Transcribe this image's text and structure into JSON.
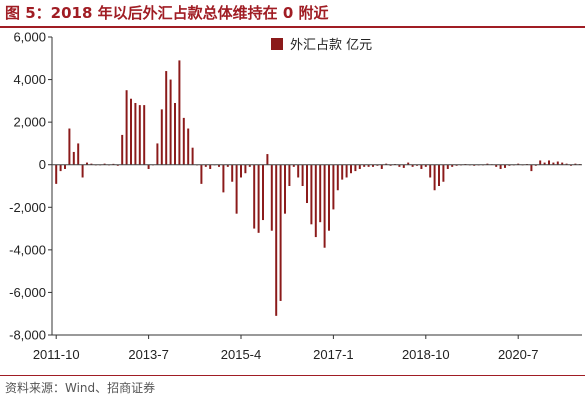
{
  "title": "图 5：2018 年以后外汇占款总体维持在 0 附近",
  "source": "资料来源：Wind、招商证券",
  "colors": {
    "accent": "#a01d24",
    "bar": "#8b1a1a"
  },
  "chart_data": {
    "type": "bar",
    "series": [
      {
        "name": "外汇占款  亿元",
        "color": "#8b1a1a",
        "points": [
          {
            "x": "2011-10",
            "y": -900
          },
          {
            "x": "2011-11",
            "y": -300
          },
          {
            "x": "2011-12",
            "y": -200
          },
          {
            "x": "2012-1",
            "y": 1700
          },
          {
            "x": "2012-2",
            "y": 600
          },
          {
            "x": "2012-3",
            "y": 1000
          },
          {
            "x": "2012-4",
            "y": -600
          },
          {
            "x": "2012-5",
            "y": 100
          },
          {
            "x": "2012-6",
            "y": 50
          },
          {
            "x": "2012-7",
            "y": -30
          },
          {
            "x": "2012-8",
            "y": -20
          },
          {
            "x": "2012-9",
            "y": 50
          },
          {
            "x": "2012-10",
            "y": -10
          },
          {
            "x": "2012-11",
            "y": 40
          },
          {
            "x": "2012-12",
            "y": -50
          },
          {
            "x": "2013-1",
            "y": 1400
          },
          {
            "x": "2013-2",
            "y": 3500
          },
          {
            "x": "2013-3",
            "y": 3100
          },
          {
            "x": "2013-4",
            "y": 2900
          },
          {
            "x": "2013-5",
            "y": 2800
          },
          {
            "x": "2013-6",
            "y": 2800
          },
          {
            "x": "2013-7",
            "y": -200
          },
          {
            "x": "2013-8",
            "y": 0
          },
          {
            "x": "2013-9",
            "y": 1000
          },
          {
            "x": "2013-10",
            "y": 2600
          },
          {
            "x": "2013-11",
            "y": 4400
          },
          {
            "x": "2013-12",
            "y": 4000
          },
          {
            "x": "2014-1",
            "y": 2900
          },
          {
            "x": "2014-2",
            "y": 4900
          },
          {
            "x": "2014-3",
            "y": 2200
          },
          {
            "x": "2014-4",
            "y": 1700
          },
          {
            "x": "2014-5",
            "y": 800
          },
          {
            "x": "2014-6",
            "y": 0
          },
          {
            "x": "2014-7",
            "y": -900
          },
          {
            "x": "2014-8",
            "y": -100
          },
          {
            "x": "2014-9",
            "y": -200
          },
          {
            "x": "2014-10",
            "y": 0
          },
          {
            "x": "2014-11",
            "y": -100
          },
          {
            "x": "2014-12",
            "y": -1300
          },
          {
            "x": "2015-1",
            "y": -100
          },
          {
            "x": "2015-2",
            "y": -800
          },
          {
            "x": "2015-3",
            "y": -2300
          },
          {
            "x": "2015-4",
            "y": -600
          },
          {
            "x": "2015-5",
            "y": -400
          },
          {
            "x": "2015-6",
            "y": -100
          },
          {
            "x": "2015-7",
            "y": -3000
          },
          {
            "x": "2015-8",
            "y": -3200
          },
          {
            "x": "2015-9",
            "y": -2600
          },
          {
            "x": "2015-10",
            "y": 500
          },
          {
            "x": "2015-11",
            "y": -3100
          },
          {
            "x": "2015-12",
            "y": -7100
          },
          {
            "x": "2016-1",
            "y": -6400
          },
          {
            "x": "2016-2",
            "y": -2300
          },
          {
            "x": "2016-3",
            "y": -1000
          },
          {
            "x": "2016-4",
            "y": -100
          },
          {
            "x": "2016-5",
            "y": -600
          },
          {
            "x": "2016-6",
            "y": -1000
          },
          {
            "x": "2016-7",
            "y": -1800
          },
          {
            "x": "2016-8",
            "y": -2800
          },
          {
            "x": "2016-9",
            "y": -3400
          },
          {
            "x": "2016-10",
            "y": -2700
          },
          {
            "x": "2016-11",
            "y": -3900
          },
          {
            "x": "2016-12",
            "y": -3100
          },
          {
            "x": "2017-1",
            "y": -2100
          },
          {
            "x": "2017-2",
            "y": -1200
          },
          {
            "x": "2017-3",
            "y": -700
          },
          {
            "x": "2017-4",
            "y": -600
          },
          {
            "x": "2017-5",
            "y": -400
          },
          {
            "x": "2017-6",
            "y": -300
          },
          {
            "x": "2017-7",
            "y": -200
          },
          {
            "x": "2017-8",
            "y": -100
          },
          {
            "x": "2017-9",
            "y": -100
          },
          {
            "x": "2017-10",
            "y": -100
          },
          {
            "x": "2017-11",
            "y": -50
          },
          {
            "x": "2017-12",
            "y": -200
          },
          {
            "x": "2018-1",
            "y": 50
          },
          {
            "x": "2018-2",
            "y": -50
          },
          {
            "x": "2018-3",
            "y": 30
          },
          {
            "x": "2018-4",
            "y": -100
          },
          {
            "x": "2018-5",
            "y": -150
          },
          {
            "x": "2018-6",
            "y": 100
          },
          {
            "x": "2018-7",
            "y": -100
          },
          {
            "x": "2018-8",
            "y": -50
          },
          {
            "x": "2018-9",
            "y": -200
          },
          {
            "x": "2018-10",
            "y": -100
          },
          {
            "x": "2018-11",
            "y": -600
          },
          {
            "x": "2018-12",
            "y": -1200
          },
          {
            "x": "2019-1",
            "y": -1000
          },
          {
            "x": "2019-2",
            "y": -800
          },
          {
            "x": "2019-3",
            "y": -200
          },
          {
            "x": "2019-4",
            "y": -100
          },
          {
            "x": "2019-5",
            "y": -50
          },
          {
            "x": "2019-6",
            "y": -30
          },
          {
            "x": "2019-7",
            "y": 30
          },
          {
            "x": "2019-8",
            "y": -20
          },
          {
            "x": "2019-9",
            "y": -50
          },
          {
            "x": "2019-10",
            "y": -30
          },
          {
            "x": "2019-11",
            "y": -20
          },
          {
            "x": "2019-12",
            "y": 50
          },
          {
            "x": "2020-1",
            "y": 20
          },
          {
            "x": "2020-2",
            "y": -100
          },
          {
            "x": "2020-3",
            "y": -200
          },
          {
            "x": "2020-4",
            "y": -150
          },
          {
            "x": "2020-5",
            "y": -50
          },
          {
            "x": "2020-6",
            "y": -30
          },
          {
            "x": "2020-7",
            "y": 50
          },
          {
            "x": "2020-8",
            "y": -20
          },
          {
            "x": "2020-9",
            "y": 30
          },
          {
            "x": "2020-10",
            "y": -300
          },
          {
            "x": "2020-11",
            "y": -50
          },
          {
            "x": "2020-12",
            "y": 200
          },
          {
            "x": "2021-1",
            "y": 100
          },
          {
            "x": "2021-2",
            "y": 200
          },
          {
            "x": "2021-3",
            "y": 100
          },
          {
            "x": "2021-4",
            "y": 150
          },
          {
            "x": "2021-5",
            "y": 100
          },
          {
            "x": "2021-6",
            "y": 50
          },
          {
            "x": "2021-7",
            "y": -50
          },
          {
            "x": "2021-8",
            "y": 50
          },
          {
            "x": "2021-9",
            "y": 30
          }
        ]
      }
    ],
    "x_tick_labels": [
      "2011-10",
      "2013-7",
      "2015-4",
      "2017-1",
      "2018-10",
      "2020-7"
    ],
    "y_ticks": [
      6000,
      4000,
      2000,
      0,
      -2000,
      -4000,
      -6000,
      -8000
    ],
    "y_tick_labels": [
      "6,000",
      "4,000",
      "2,000",
      "0",
      "-2,000",
      "-4,000",
      "-6,000",
      "-8,000"
    ],
    "ylim": [
      -8000,
      6000
    ],
    "grid": false,
    "legend_position": "top-center"
  }
}
